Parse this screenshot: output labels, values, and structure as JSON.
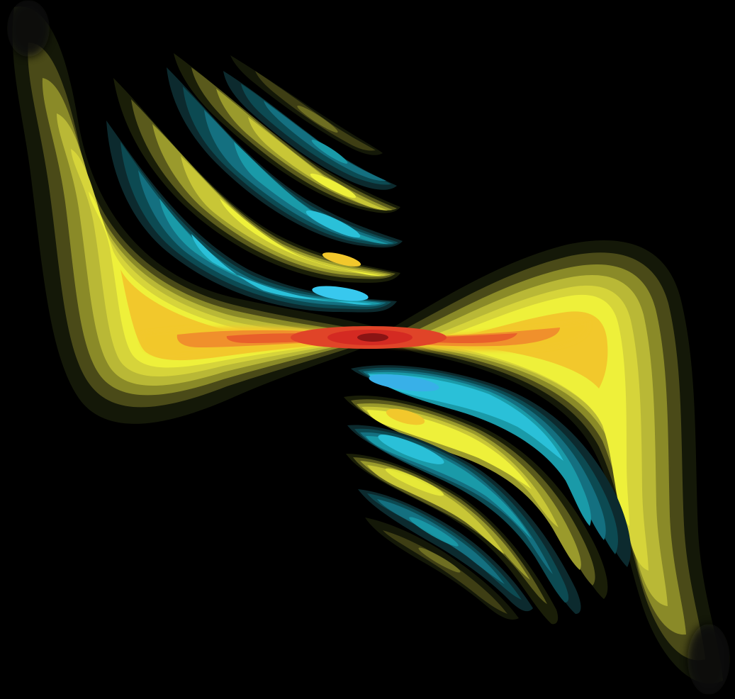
{
  "figure": {
    "subject": "contour-field",
    "background_color": "#000000",
    "palette": {
      "core": "#c81e1e",
      "hot": "#e64a24",
      "warm": "#f08a2a",
      "orange": "#f2b52c",
      "yellow": "#eef03a",
      "olive": "#b9b836",
      "dim_olive": "#5a5a1c",
      "cyan": "#20b4d8",
      "teal": "#178a96",
      "deep_teal": "#0c4a52",
      "fade": "#141808"
    },
    "lobes": [
      {
        "kind": "positive",
        "label": "upper-left-yellow-lobe"
      },
      {
        "kind": "negative",
        "label": "upper-cyan-band-1"
      },
      {
        "kind": "positive",
        "label": "upper-yellow-band-2"
      },
      {
        "kind": "negative",
        "label": "upper-cyan-band-3"
      },
      {
        "kind": "positive",
        "label": "upper-yellow-band-4"
      },
      {
        "kind": "negative",
        "label": "upper-cyan-band-5"
      },
      {
        "kind": "peak",
        "label": "central-red-core"
      },
      {
        "kind": "positive",
        "label": "lower-right-yellow-lobe"
      },
      {
        "kind": "negative",
        "label": "lower-cyan-band-1"
      },
      {
        "kind": "positive",
        "label": "lower-yellow-band-2"
      },
      {
        "kind": "negative",
        "label": "lower-cyan-band-3"
      },
      {
        "kind": "positive",
        "label": "lower-yellow-band-4"
      },
      {
        "kind": "negative",
        "label": "lower-cyan-band-5"
      }
    ]
  }
}
